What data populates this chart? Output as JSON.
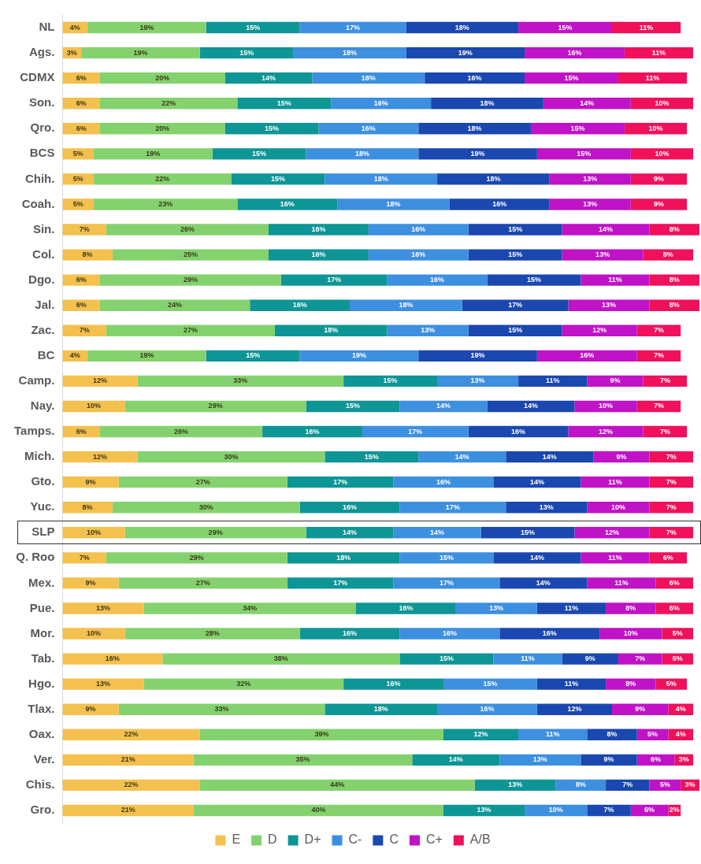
{
  "chart_data": {
    "type": "bar",
    "orientation": "horizontal",
    "stacked": true,
    "legend": "bottom",
    "tick_labels": "y",
    "grid": false,
    "categories": [
      "NL",
      "Ags.",
      "CDMX",
      "Son.",
      "Qro.",
      "BCS",
      "Chih.",
      "Coah.",
      "Sin.",
      "Col.",
      "Dgo.",
      "Jal.",
      "Zac.",
      "BC",
      "Camp.",
      "Nay.",
      "Tamps.",
      "Mich.",
      "Gto.",
      "Yuc.",
      "SLP",
      "Q. Roo",
      "Mex.",
      "Pue.",
      "Mor.",
      "Tab.",
      "Hgo.",
      "Tlax.",
      "Oax.",
      "Ver.",
      "Chis.",
      "Gro."
    ],
    "series": [
      {
        "name": "E",
        "color": "#f4c04e",
        "values": [
          4,
          3,
          6,
          6,
          6,
          5,
          5,
          5,
          7,
          8,
          6,
          6,
          7,
          4,
          12,
          10,
          6,
          12,
          9,
          8,
          10,
          7,
          9,
          13,
          10,
          16,
          13,
          9,
          22,
          21,
          22,
          21
        ],
        "value_labels": [
          "4%",
          "3%",
          "6%",
          "6%",
          "6%",
          "5%",
          "5%",
          "5%",
          "7%",
          "8%",
          "6%",
          "6%",
          "7%",
          "4%",
          "12%",
          "10%",
          "6%",
          "12%",
          "9%",
          "8%",
          "10%",
          "7%",
          "9%",
          "13%",
          "10%",
          "16%",
          "13%",
          "9%",
          "22%",
          "21%",
          "22%",
          "21%"
        ]
      },
      {
        "name": "D",
        "color": "#84d26e",
        "values": [
          19,
          19,
          20,
          22,
          20,
          19,
          22,
          23,
          26,
          25,
          29,
          24,
          27,
          19,
          33,
          29,
          26,
          30,
          27,
          30,
          29,
          29,
          27,
          34,
          28,
          38,
          32,
          33,
          39,
          35,
          44,
          40
        ],
        "value_labels": [
          "19%",
          "19%",
          "20%",
          "22%",
          "20%",
          "19%",
          "22%",
          "23%",
          "26%",
          "25%",
          "29%",
          "24%",
          "27%",
          "19%",
          "33%",
          "29%",
          "26%",
          "30%",
          "27%",
          "30%",
          "29%",
          "29%",
          "27%",
          "34%",
          "28%",
          "38%",
          "32%",
          "33%",
          "39%",
          "35%",
          "44%",
          "40%"
        ]
      },
      {
        "name": "D+",
        "color": "#0e9595",
        "values": [
          15,
          15,
          14,
          15,
          15,
          15,
          15,
          16,
          16,
          16,
          17,
          16,
          18,
          15,
          15,
          15,
          16,
          15,
          17,
          16,
          14,
          18,
          17,
          16,
          16,
          15,
          16,
          18,
          12,
          14,
          13,
          13
        ],
        "value_labels": [
          "15%",
          "15%",
          "14%",
          "15%",
          "15%",
          "15%",
          "15%",
          "16%",
          "16%",
          "16%",
          "17%",
          "16%",
          "18%",
          "15%",
          "15%",
          "15%",
          "16%",
          "15%",
          "17%",
          "16%",
          "14%",
          "18%",
          "17%",
          "16%",
          "16%",
          "15%",
          "16%",
          "18%",
          "12%",
          "14%",
          "13%",
          "13%"
        ]
      },
      {
        "name": "C-",
        "color": "#3d8fe0",
        "values": [
          17,
          18,
          18,
          16,
          16,
          18,
          18,
          18,
          16,
          16,
          16,
          18,
          13,
          19,
          13,
          14,
          17,
          14,
          16,
          17,
          14,
          15,
          17,
          13,
          16,
          11,
          15,
          16,
          11,
          13,
          8,
          10
        ],
        "value_labels": [
          "17%",
          "18%",
          "18%",
          "16%",
          "16%",
          "18%",
          "18%",
          "18%",
          "16%",
          "16%",
          "16%",
          "18%",
          "13%",
          "19%",
          "13%",
          "14%",
          "17%",
          "14%",
          "16%",
          "17%",
          "14%",
          "15%",
          "17%",
          "13%",
          "16%",
          "11%",
          "15%",
          "16%",
          "11%",
          "13%",
          "8%",
          "10%"
        ]
      },
      {
        "name": "C",
        "color": "#1a47b0",
        "values": [
          18,
          19,
          16,
          18,
          18,
          19,
          18,
          16,
          15,
          15,
          15,
          17,
          15,
          19,
          11,
          14,
          16,
          14,
          14,
          13,
          15,
          14,
          14,
          11,
          16,
          9,
          11,
          12,
          8,
          9,
          7,
          7
        ],
        "value_labels": [
          "18%",
          "19%",
          "16%",
          "18%",
          "18%",
          "19%",
          "18%",
          "16%",
          "15%",
          "15%",
          "15%",
          "17%",
          "15%",
          "19%",
          "11%",
          "14%",
          "16%",
          "14%",
          "14%",
          "13%",
          "15%",
          "14%",
          "14%",
          "11%",
          "16%",
          "9%",
          "11%",
          "12%",
          "8%",
          "9%",
          "7%",
          "7%"
        ]
      },
      {
        "name": "C+",
        "color": "#c012c6",
        "values": [
          15,
          16,
          15,
          14,
          15,
          15,
          13,
          13,
          14,
          13,
          11,
          13,
          12,
          16,
          9,
          10,
          12,
          9,
          11,
          10,
          12,
          11,
          11,
          8,
          10,
          7,
          8,
          9,
          5,
          6,
          5,
          6
        ],
        "value_labels": [
          "15%",
          "16%",
          "15%",
          "14%",
          "15%",
          "15%",
          "13%",
          "13%",
          "14%",
          "13%",
          "11%",
          "13%",
          "12%",
          "16%",
          "9%",
          "10%",
          "12%",
          "9%",
          "11%",
          "10%",
          "12%",
          "11%",
          "11%",
          "8%",
          "10%",
          "7%",
          "8%",
          "9%",
          "5%",
          "6%",
          "5%",
          "6%"
        ]
      },
      {
        "name": "A/B",
        "color": "#f0115a",
        "values": [
          11,
          11,
          11,
          10,
          10,
          10,
          9,
          9,
          8,
          8,
          8,
          8,
          7,
          7,
          7,
          7,
          7,
          7,
          7,
          7,
          7,
          6,
          6,
          6,
          5,
          5,
          5,
          4,
          4,
          3,
          3,
          2
        ],
        "value_labels": [
          "11%",
          "11%",
          "11%",
          "10%",
          "10%",
          "10%",
          "9%",
          "9%",
          "8%",
          "8%",
          "8%",
          "8%",
          "7%",
          "7%",
          "7%",
          "7%",
          "7%",
          "7%",
          "7%",
          "7%",
          "7%",
          "6%",
          "6%",
          "6%",
          "5%",
          "5%",
          "5%",
          "4%",
          "4%",
          "3%",
          "3%",
          "2%"
        ]
      }
    ]
  }
}
